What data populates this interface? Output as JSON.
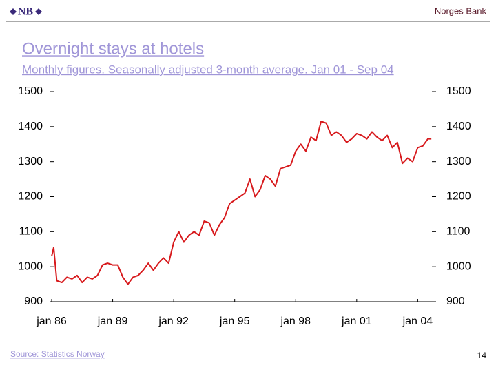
{
  "header": {
    "logo": "NB",
    "bank": "Norges Bank"
  },
  "footer": {
    "source": "Source: Statistics Norway",
    "page": "14"
  },
  "chart_data": {
    "type": "line",
    "title": "Overnight stays at hotels",
    "subtitle": "Monthly figures. Seasonally adjusted 3-month average. Jan 01 - Sep 04",
    "x": [
      1986.0,
      1986.1,
      1986.25,
      1986.5,
      1986.75,
      1987.0,
      1987.25,
      1987.5,
      1987.75,
      1988.0,
      1988.25,
      1988.5,
      1988.75,
      1989.0,
      1989.25,
      1989.5,
      1989.75,
      1990.0,
      1990.25,
      1990.5,
      1990.75,
      1991.0,
      1991.25,
      1991.5,
      1991.75,
      1992.0,
      1992.25,
      1992.5,
      1992.75,
      1993.0,
      1993.25,
      1993.5,
      1993.75,
      1994.0,
      1994.25,
      1994.5,
      1994.75,
      1995.0,
      1995.25,
      1995.5,
      1995.75,
      1996.0,
      1996.25,
      1996.5,
      1996.75,
      1997.0,
      1997.25,
      1997.5,
      1997.75,
      1998.0,
      1998.25,
      1998.5,
      1998.75,
      1999.0,
      1999.25,
      1999.5,
      1999.75,
      2000.0,
      2000.25,
      2000.5,
      2000.75,
      2001.0,
      2001.25,
      2001.5,
      2001.75,
      2002.0,
      2002.25,
      2002.5,
      2002.75,
      2003.0,
      2003.25,
      2003.5,
      2003.75,
      2004.0,
      2004.25,
      2004.5,
      2004.67
    ],
    "series": [
      {
        "color": "#d7191c",
        "values": [
          1030,
          1055,
          960,
          955,
          970,
          965,
          975,
          955,
          970,
          965,
          975,
          1005,
          1010,
          1005,
          1005,
          970,
          950,
          970,
          975,
          990,
          1010,
          990,
          1010,
          1025,
          1010,
          1070,
          1100,
          1070,
          1090,
          1100,
          1090,
          1130,
          1125,
          1090,
          1120,
          1140,
          1180,
          1190,
          1200,
          1210,
          1250,
          1200,
          1220,
          1260,
          1250,
          1230,
          1280,
          1285,
          1290,
          1330,
          1350,
          1330,
          1370,
          1360,
          1415,
          1410,
          1375,
          1385,
          1375,
          1355,
          1365,
          1380,
          1375,
          1365,
          1385,
          1370,
          1360,
          1375,
          1340,
          1355,
          1295,
          1310,
          1300,
          1340,
          1345,
          1365,
          1365
        ]
      }
    ],
    "xlim": [
      1986,
      2004.8
    ],
    "xticks": [
      {
        "value": 1986,
        "label": "jan 86"
      },
      {
        "value": 1989,
        "label": "jan 89"
      },
      {
        "value": 1992,
        "label": "jan 92"
      },
      {
        "value": 1995,
        "label": "jan 95"
      },
      {
        "value": 1998,
        "label": "jan 98"
      },
      {
        "value": 2001,
        "label": "jan 01"
      },
      {
        "value": 2004,
        "label": "jan 04"
      }
    ],
    "ylim": [
      900,
      1500
    ],
    "yticks": [
      900,
      1000,
      1100,
      1200,
      1300,
      1400,
      1500
    ],
    "grid": false
  }
}
